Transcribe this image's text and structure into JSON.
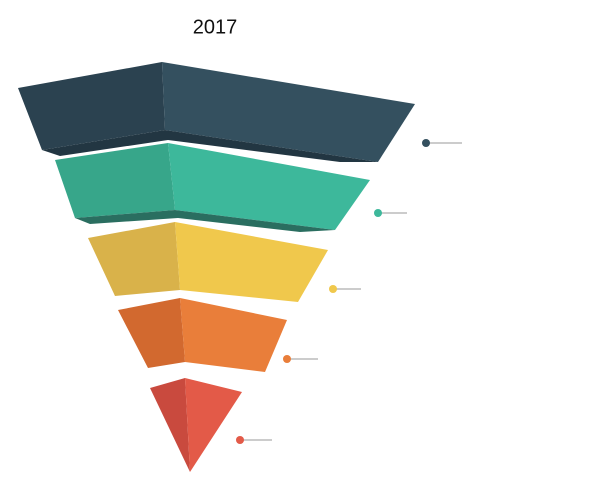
{
  "title": "2017"
}
